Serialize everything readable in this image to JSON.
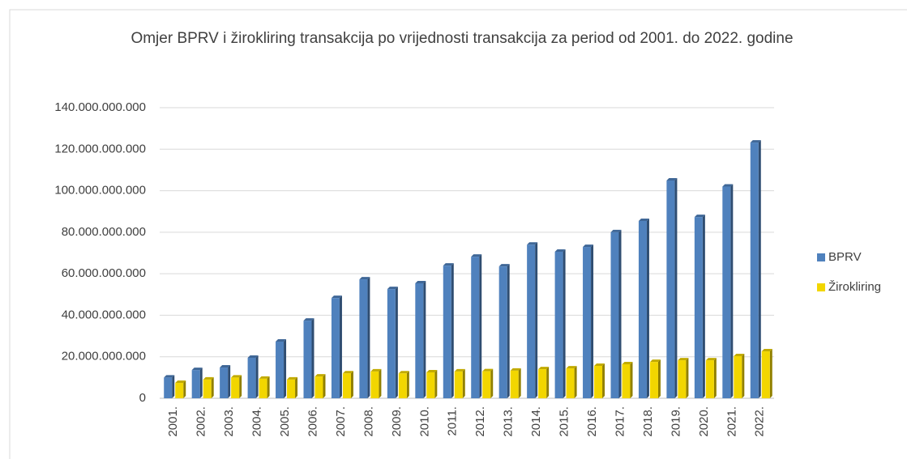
{
  "chart_data": {
    "type": "bar",
    "title": "Omjer  BPRV i žirokliring transakcija po vrijednosti  transakcija za period  od 2001. do 2022. godine",
    "categories": [
      "2001.",
      "2002.",
      "2003.",
      "2004.",
      "2005.",
      "2006.",
      "2007.",
      "2008.",
      "2009.",
      "2010.",
      "2011.",
      "2012.",
      "2013.",
      "2014.",
      "2015.",
      "2016.",
      "2017.",
      "2018.",
      "2019.",
      "2020.",
      "2021.",
      "2022."
    ],
    "series": [
      {
        "name": "BPRV",
        "color": "#4f81bd",
        "values": [
          10000000000,
          13600000000,
          14800000000,
          19500000000,
          27300000000,
          37400000000,
          48300000000,
          57300000000,
          52600000000,
          55400000000,
          63900000000,
          68200000000,
          63500000000,
          74000000000,
          70600000000,
          72900000000,
          80000000000,
          85400000000,
          104900000000,
          87300000000,
          102000000000,
          123200000000
        ]
      },
      {
        "name": "Žirokliring",
        "color": "#f2d600",
        "values": [
          7400000000,
          9000000000,
          10000000000,
          9400000000,
          9000000000,
          10500000000,
          12000000000,
          12900000000,
          12000000000,
          12500000000,
          12900000000,
          13000000000,
          13300000000,
          14000000000,
          14400000000,
          15600000000,
          16400000000,
          17500000000,
          18300000000,
          18300000000,
          20300000000,
          22600000000
        ]
      }
    ],
    "ylim": [
      0,
      140000000000
    ],
    "yticks": [
      0,
      {
        "value": 20000000000,
        "label": "20.000.000.000"
      },
      {
        "value": 40000000000,
        "label": "40.000.000.000"
      },
      {
        "value": 60000000000,
        "label": "60.000.000.000"
      },
      {
        "value": 80000000000,
        "label": "80.000.000.000"
      },
      {
        "value": 100000000000,
        "label": "100.000.000.000"
      },
      {
        "value": 120000000000,
        "label": "120.000.000.000"
      },
      {
        "value": 140000000000,
        "label": "140.000.000.000"
      }
    ],
    "grid": true,
    "legend": "right"
  }
}
